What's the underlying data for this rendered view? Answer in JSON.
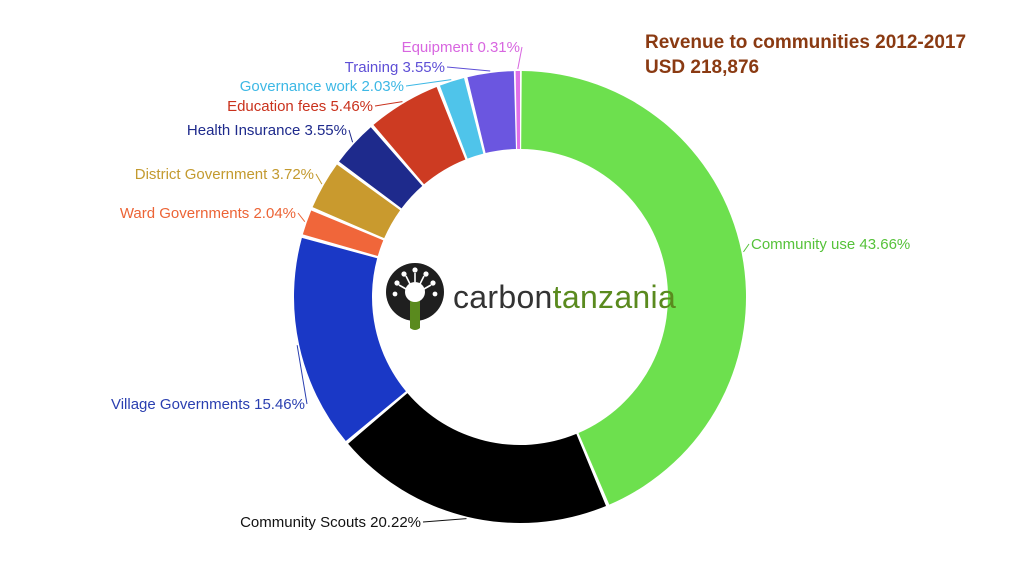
{
  "title": {
    "line1": "Revenue to communities 2012-2017",
    "line2": "USD 218,876"
  },
  "logo": {
    "word1": "carbon",
    "word2": "tanzania"
  },
  "chart_data": {
    "type": "pie",
    "subtype": "donut",
    "title": "Revenue to communities 2012-2017",
    "subtitle": "USD 218,876",
    "slices": [
      {
        "label": "Community use 43.66%",
        "value": 43.66,
        "color": "#6de04e",
        "text_color": "#56c23a"
      },
      {
        "label": "Community Scouts 20.22%",
        "value": 20.22,
        "color": "#000000",
        "text_color": "#111111"
      },
      {
        "label": "Village Governments 15.46%",
        "value": 15.46,
        "color": "#1a38c6",
        "text_color": "#2a3fb0"
      },
      {
        "label": "Ward Governments 2.04%",
        "value": 2.04,
        "color": "#f0663a",
        "text_color": "#ec6436"
      },
      {
        "label": "District Government 3.72%",
        "value": 3.72,
        "color": "#c99a2e",
        "text_color": "#c39a2f"
      },
      {
        "label": "Health Insurance 3.55%",
        "value": 3.55,
        "color": "#1e2a8c",
        "text_color": "#1e2a8c"
      },
      {
        "label": "Education fees 5.46%",
        "value": 5.46,
        "color": "#cd3b22",
        "text_color": "#c9311c"
      },
      {
        "label": "Governance work 2.03%",
        "value": 2.03,
        "color": "#4fc4ea",
        "text_color": "#3db8e5"
      },
      {
        "label": "Training 3.55%",
        "value": 3.55,
        "color": "#6b56e0",
        "text_color": "#5e4fd6"
      },
      {
        "label": "Equipment 0.31%",
        "value": 0.31,
        "color": "#e070e8",
        "text_color": "#d866e0"
      }
    ]
  }
}
